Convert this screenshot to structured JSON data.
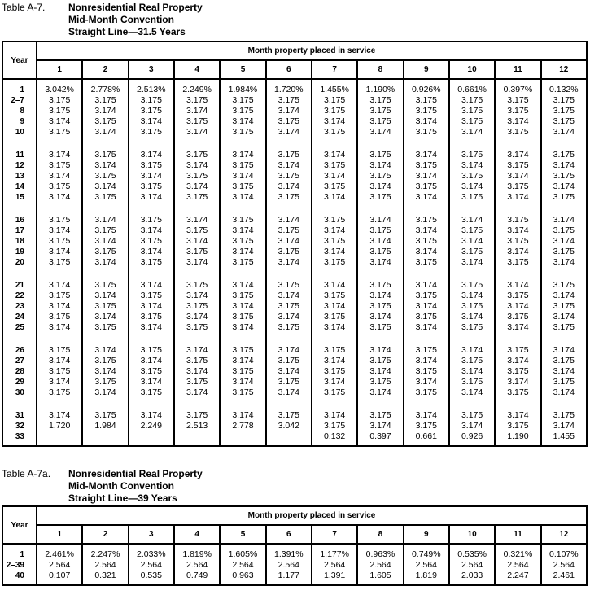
{
  "tables": [
    {
      "label": "Table A-7.",
      "title_lines": [
        "Nonresidential Real Property",
        "Mid-Month Convention",
        "Straight Line—31.5 Years"
      ],
      "year_header": "Year",
      "month_header": "Month property placed in service",
      "months": [
        "1",
        "2",
        "3",
        "4",
        "5",
        "6",
        "7",
        "8",
        "9",
        "10",
        "11",
        "12"
      ],
      "groups": [
        [
          {
            "year": "1",
            "values": [
              "3.042%",
              "2.778%",
              "2.513%",
              "2.249%",
              "1.984%",
              "1.720%",
              "1.455%",
              "1.190%",
              "0.926%",
              "0.661%",
              "0.397%",
              "0.132%"
            ]
          },
          {
            "year": "2–7",
            "values": [
              "3.175",
              "3.175",
              "3.175",
              "3.175",
              "3.175",
              "3.175",
              "3.175",
              "3.175",
              "3.175",
              "3.175",
              "3.175",
              "3.175"
            ]
          },
          {
            "year": "8",
            "values": [
              "3.175",
              "3.174",
              "3.175",
              "3.174",
              "3.175",
              "3.174",
              "3.175",
              "3.175",
              "3.175",
              "3.175",
              "3.175",
              "3.175"
            ]
          },
          {
            "year": "9",
            "values": [
              "3.174",
              "3.175",
              "3.174",
              "3.175",
              "3.174",
              "3.175",
              "3.174",
              "3.175",
              "3.174",
              "3.175",
              "3.174",
              "3.175"
            ]
          },
          {
            "year": "10",
            "values": [
              "3.175",
              "3.174",
              "3.175",
              "3.174",
              "3.175",
              "3.174",
              "3.175",
              "3.174",
              "3.175",
              "3.174",
              "3.175",
              "3.174"
            ]
          }
        ],
        [
          {
            "year": "11",
            "values": [
              "3.174",
              "3.175",
              "3.174",
              "3.175",
              "3.174",
              "3.175",
              "3.174",
              "3.175",
              "3.174",
              "3.175",
              "3.174",
              "3.175"
            ]
          },
          {
            "year": "12",
            "values": [
              "3.175",
              "3.174",
              "3.175",
              "3.174",
              "3.175",
              "3.174",
              "3.175",
              "3.174",
              "3.175",
              "3.174",
              "3.175",
              "3.174"
            ]
          },
          {
            "year": "13",
            "values": [
              "3.174",
              "3.175",
              "3.174",
              "3.175",
              "3.174",
              "3.175",
              "3.174",
              "3.175",
              "3.174",
              "3.175",
              "3.174",
              "3.175"
            ]
          },
          {
            "year": "14",
            "values": [
              "3.175",
              "3.174",
              "3.175",
              "3.174",
              "3.175",
              "3.174",
              "3.175",
              "3.174",
              "3.175",
              "3.174",
              "3.175",
              "3.174"
            ]
          },
          {
            "year": "15",
            "values": [
              "3.174",
              "3.175",
              "3.174",
              "3.175",
              "3.174",
              "3.175",
              "3.174",
              "3.175",
              "3.174",
              "3.175",
              "3.174",
              "3.175"
            ]
          }
        ],
        [
          {
            "year": "16",
            "values": [
              "3.175",
              "3.174",
              "3.175",
              "3.174",
              "3.175",
              "3.174",
              "3.175",
              "3.174",
              "3.175",
              "3.174",
              "3.175",
              "3.174"
            ]
          },
          {
            "year": "17",
            "values": [
              "3.174",
              "3.175",
              "3.174",
              "3.175",
              "3.174",
              "3.175",
              "3.174",
              "3.175",
              "3.174",
              "3.175",
              "3.174",
              "3.175"
            ]
          },
          {
            "year": "18",
            "values": [
              "3.175",
              "3.174",
              "3.175",
              "3.174",
              "3.175",
              "3.174",
              "3.175",
              "3.174",
              "3.175",
              "3.174",
              "3.175",
              "3.174"
            ]
          },
          {
            "year": "19",
            "values": [
              "3.174",
              "3.175",
              "3.174",
              "3.175",
              "3.174",
              "3.175",
              "3.174",
              "3.175",
              "3.174",
              "3.175",
              "3.174",
              "3.175"
            ]
          },
          {
            "year": "20",
            "values": [
              "3.175",
              "3.174",
              "3.175",
              "3.174",
              "3.175",
              "3.174",
              "3.175",
              "3.174",
              "3.175",
              "3.174",
              "3.175",
              "3.174"
            ]
          }
        ],
        [
          {
            "year": "21",
            "values": [
              "3.174",
              "3.175",
              "3.174",
              "3.175",
              "3.174",
              "3.175",
              "3.174",
              "3.175",
              "3.174",
              "3.175",
              "3.174",
              "3.175"
            ]
          },
          {
            "year": "22",
            "values": [
              "3.175",
              "3.174",
              "3.175",
              "3.174",
              "3.175",
              "3.174",
              "3.175",
              "3.174",
              "3.175",
              "3.174",
              "3.175",
              "3.174"
            ]
          },
          {
            "year": "23",
            "values": [
              "3.174",
              "3.175",
              "3.174",
              "3.175",
              "3.174",
              "3.175",
              "3.174",
              "3.175",
              "3.174",
              "3.175",
              "3.174",
              "3.175"
            ]
          },
          {
            "year": "24",
            "values": [
              "3.175",
              "3.174",
              "3.175",
              "3.174",
              "3.175",
              "3.174",
              "3.175",
              "3.174",
              "3.175",
              "3.174",
              "3.175",
              "3.174"
            ]
          },
          {
            "year": "25",
            "values": [
              "3.174",
              "3.175",
              "3.174",
              "3.175",
              "3.174",
              "3.175",
              "3.174",
              "3.175",
              "3.174",
              "3.175",
              "3.174",
              "3.175"
            ]
          }
        ],
        [
          {
            "year": "26",
            "values": [
              "3.175",
              "3.174",
              "3.175",
              "3.174",
              "3.175",
              "3.174",
              "3.175",
              "3.174",
              "3.175",
              "3.174",
              "3.175",
              "3.174"
            ]
          },
          {
            "year": "27",
            "values": [
              "3.174",
              "3.175",
              "3.174",
              "3.175",
              "3.174",
              "3.175",
              "3.174",
              "3.175",
              "3.174",
              "3.175",
              "3.174",
              "3.175"
            ]
          },
          {
            "year": "28",
            "values": [
              "3.175",
              "3.174",
              "3.175",
              "3.174",
              "3.175",
              "3.174",
              "3.175",
              "3.174",
              "3.175",
              "3.174",
              "3.175",
              "3.174"
            ]
          },
          {
            "year": "29",
            "values": [
              "3.174",
              "3.175",
              "3.174",
              "3.175",
              "3.174",
              "3.175",
              "3.174",
              "3.175",
              "3.174",
              "3.175",
              "3.174",
              "3.175"
            ]
          },
          {
            "year": "30",
            "values": [
              "3.175",
              "3.174",
              "3.175",
              "3.174",
              "3.175",
              "3.174",
              "3.175",
              "3.174",
              "3.175",
              "3.174",
              "3.175",
              "3.174"
            ]
          }
        ],
        [
          {
            "year": "31",
            "values": [
              "3.174",
              "3.175",
              "3.174",
              "3.175",
              "3.174",
              "3.175",
              "3.174",
              "3.175",
              "3.174",
              "3.175",
              "3.174",
              "3.175"
            ]
          },
          {
            "year": "32",
            "values": [
              "1.720",
              "1.984",
              "2.249",
              "2.513",
              "2.778",
              "3.042",
              "3.175",
              "3.174",
              "3.175",
              "3.174",
              "3.175",
              "3.174"
            ]
          },
          {
            "year": "33",
            "values": [
              "",
              "",
              "",
              "",
              "",
              "",
              "0.132",
              "0.397",
              "0.661",
              "0.926",
              "1.190",
              "1.455"
            ]
          }
        ]
      ]
    },
    {
      "label": "Table A-7a.",
      "title_lines": [
        "Nonresidential Real Property",
        "Mid-Month Convention",
        "Straight Line—39 Years"
      ],
      "year_header": "Year",
      "month_header": "Month property placed in service",
      "months": [
        "1",
        "2",
        "3",
        "4",
        "5",
        "6",
        "7",
        "8",
        "9",
        "10",
        "11",
        "12"
      ],
      "groups": [
        [
          {
            "year": "1",
            "values": [
              "2.461%",
              "2.247%",
              "2.033%",
              "1.819%",
              "1.605%",
              "1.391%",
              "1.177%",
              "0.963%",
              "0.749%",
              "0.535%",
              "0.321%",
              "0.107%"
            ]
          },
          {
            "year": "2–39",
            "values": [
              "2.564",
              "2.564",
              "2.564",
              "2.564",
              "2.564",
              "2.564",
              "2.564",
              "2.564",
              "2.564",
              "2.564",
              "2.564",
              "2.564"
            ]
          },
          {
            "year": "40",
            "values": [
              "0.107",
              "0.321",
              "0.535",
              "0.749",
              "0.963",
              "1.177",
              "1.391",
              "1.605",
              "1.819",
              "2.033",
              "2.247",
              "2.461"
            ]
          }
        ]
      ]
    }
  ]
}
